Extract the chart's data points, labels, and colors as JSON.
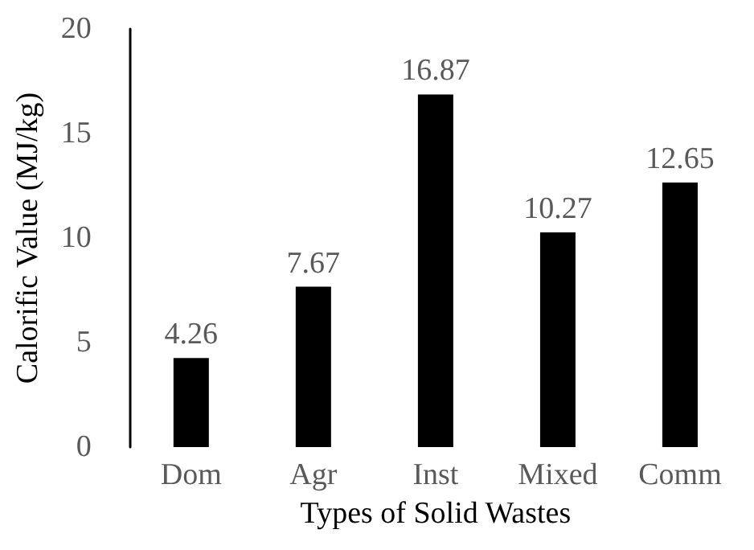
{
  "chart_data": {
    "type": "bar",
    "xlabel": "Types of Solid Wastes",
    "ylabel": "Calorific Value (MJ/kg)",
    "categories": [
      "Dom",
      "Agr",
      "Inst",
      "Mixed",
      "Comm"
    ],
    "values": [
      4.26,
      7.67,
      16.87,
      10.27,
      12.65
    ],
    "color": "#000000",
    "ylim": [
      0,
      20
    ],
    "yticks": [
      0,
      5,
      10,
      15,
      20
    ],
    "grid": false,
    "data_labels": true
  }
}
